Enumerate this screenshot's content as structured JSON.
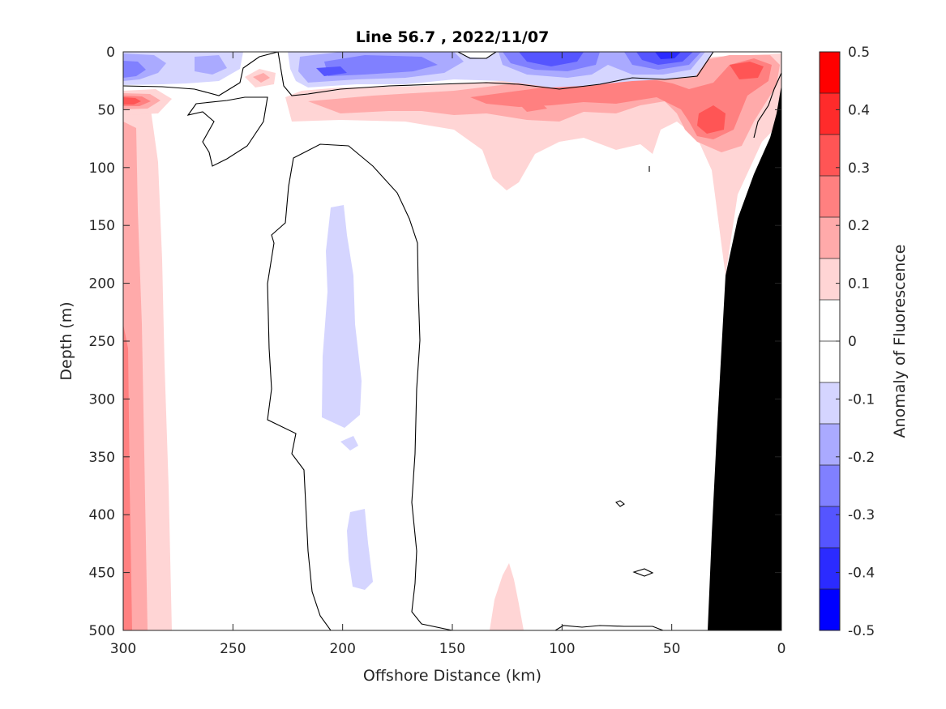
{
  "chart_data": {
    "type": "contour",
    "title": "Line 56.7 , 2022/11/07",
    "xlabel": "Offshore Distance (km)",
    "ylabel": "Depth (m)",
    "colorbar_label": "Anomaly of Fluorescence",
    "xlim": [
      300,
      0
    ],
    "ylim": [
      0,
      500
    ],
    "x_reversed": true,
    "y_reversed": true,
    "xticks": [
      300,
      250,
      200,
      150,
      100,
      50,
      0
    ],
    "xtick_labels": [
      "300",
      "250",
      "200",
      "150",
      "100",
      "50",
      "0"
    ],
    "yticks": [
      0,
      50,
      100,
      150,
      200,
      250,
      300,
      350,
      400,
      450,
      500
    ],
    "ytick_labels": [
      "0",
      "50",
      "100",
      "150",
      "200",
      "250",
      "300",
      "350",
      "400",
      "450",
      "500"
    ],
    "colorbar": {
      "range": [
        -0.5,
        0.5
      ],
      "ticks": [
        0.5,
        0.4,
        0.3,
        0.2,
        0.1,
        0,
        -0.1,
        -0.2,
        -0.3,
        -0.4,
        -0.5
      ],
      "tick_labels": [
        "0.5",
        "0.4",
        "0.3",
        "0.2",
        "0.1",
        "0",
        "-0.1",
        "-0.2",
        "-0.3",
        "-0.4",
        "-0.5"
      ],
      "colors": [
        "#ff0000",
        "#ff2b2b",
        "#ff5555",
        "#ff8080",
        "#ffaaaa",
        "#ffd5d5",
        "#ffffff",
        "#ffffff",
        "#d5d5ff",
        "#aaaaff",
        "#8080ff",
        "#5555ff",
        "#2b2bff",
        "#0000ff"
      ]
    },
    "zero_contour": true,
    "land_mask": {
      "color": "#000000"
    },
    "colors": {
      "positive": "#ff0000",
      "negative": "#0000ff",
      "zero": "#ffffff",
      "land": "#000000"
    }
  }
}
